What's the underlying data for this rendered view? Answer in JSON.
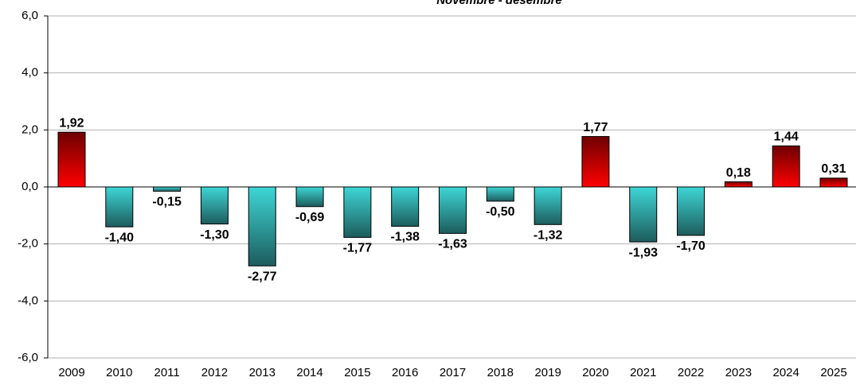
{
  "chart_data": {
    "type": "bar",
    "title": "Novembre - desembre",
    "categories": [
      "2009",
      "2010",
      "2011",
      "2012",
      "2013",
      "2014",
      "2015",
      "2016",
      "2017",
      "2018",
      "2019",
      "2020",
      "2021",
      "2022",
      "2023",
      "2024",
      "2025"
    ],
    "values": [
      1.92,
      -1.4,
      -0.15,
      -1.3,
      -2.77,
      -0.69,
      -1.77,
      -1.38,
      -1.63,
      -0.5,
      -1.32,
      1.77,
      -1.93,
      -1.7,
      0.18,
      1.44,
      0.31
    ],
    "value_labels": [
      "1,92",
      "-1,40",
      "-0,15",
      "-1,30",
      "-2,77",
      "-0,69",
      "-1,77",
      "-1,38",
      "-1,63",
      "-0,50",
      "-1,32",
      "1,77",
      "-1,93",
      "-1,70",
      "0,18",
      "1,44",
      "0,31"
    ],
    "ylim": [
      -6,
      6
    ],
    "yticks": [
      {
        "value": -6,
        "label": "-6,0"
      },
      {
        "value": -4,
        "label": "-4,0"
      },
      {
        "value": -2,
        "label": "-2,0"
      },
      {
        "value": 0,
        "label": "0,0"
      },
      {
        "value": 2,
        "label": "2,0"
      },
      {
        "value": 4,
        "label": "4,0"
      },
      {
        "value": 6,
        "label": "6,0"
      }
    ],
    "grid": true,
    "positive_gradient": [
      "#6e0000",
      "#ff0000"
    ],
    "negative_gradient": [
      "#3ed6d6",
      "#1d5c5c"
    ],
    "label_color": "#1e8c9c"
  }
}
